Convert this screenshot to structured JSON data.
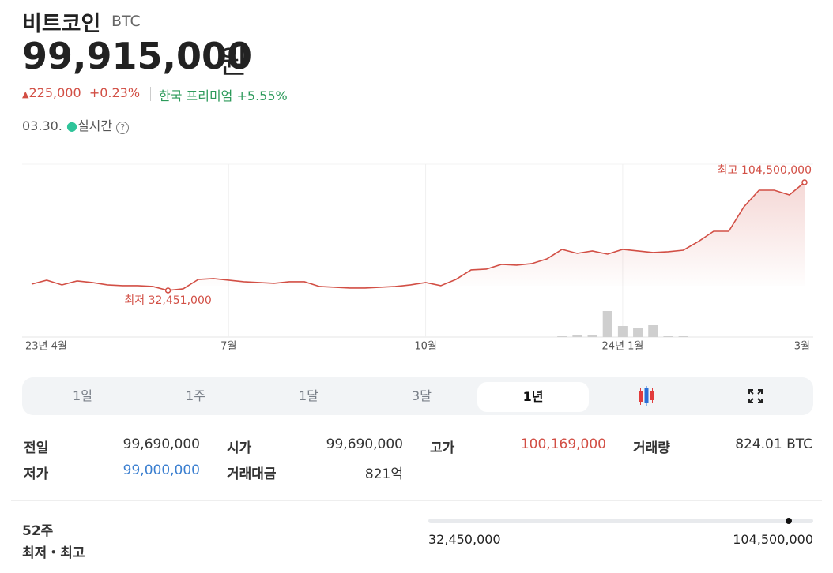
{
  "header": {
    "title": "비트코인",
    "ticker": "BTC",
    "price": {
      "value": 99915000,
      "label": "99,915,000"
    },
    "unit": "원",
    "change": "225,000",
    "change_pct": "+0.23%",
    "premium_label": "한국 프리미엄",
    "premium": "+5.55%",
    "date": "03.30.",
    "live": "실시간"
  },
  "chart_data": {
    "type": "line",
    "color": "#d24f45",
    "grid": true,
    "categories": [
      "23년 4월",
      null,
      null,
      null,
      null,
      null,
      null,
      null,
      null,
      null,
      null,
      null,
      null,
      "7월",
      null,
      null,
      null,
      null,
      null,
      null,
      null,
      null,
      null,
      null,
      null,
      null,
      "10월",
      null,
      null,
      null,
      null,
      null,
      null,
      null,
      null,
      null,
      null,
      null,
      null,
      "24년 1월",
      null,
      null,
      null,
      null,
      null,
      null,
      null,
      null,
      null,
      null,
      null,
      "3월"
    ],
    "values": [
      36660000,
      39290000,
      36130000,
      38760000,
      37710000,
      36130000,
      35610000,
      35610000,
      35080000,
      32451000,
      33500000,
      39810000,
      40340000,
      39290000,
      38240000,
      37710000,
      37180000,
      38240000,
      38240000,
      35080000,
      34550000,
      34030000,
      34030000,
      34550000,
      35080000,
      36130000,
      37710000,
      35610000,
      39810000,
      46130000,
      46650000,
      49810000,
      49280000,
      50330000,
      53490000,
      59800000,
      57170000,
      58750000,
      56640000,
      59800000,
      58750000,
      57700000,
      58220000,
      59270000,
      65060000,
      71890000,
      71890000,
      88200000,
      99240000,
      99240000,
      96090000,
      104500000
    ],
    "ylim": [
      1400000,
      116600000
    ],
    "volume": [
      null,
      null,
      null,
      null,
      null,
      null,
      null,
      null,
      null,
      null,
      null,
      null,
      null,
      null,
      null,
      null,
      null,
      null,
      null,
      null,
      null,
      null,
      null,
      null,
      null,
      null,
      null,
      null,
      null,
      null,
      null,
      null,
      null,
      null,
      null,
      1,
      2,
      3,
      33,
      14,
      12,
      15,
      1,
      1,
      null,
      null,
      null,
      null,
      null,
      null,
      null,
      null
    ],
    "volume_color": "#cfcfcf",
    "y2lim": [
      0,
      100
    ],
    "annotations": {
      "min": "최저 32,451,000",
      "max": "최고 104,500,000"
    }
  },
  "tabs": [
    "1일",
    "1주",
    "1달",
    "3달",
    "1년"
  ],
  "selected_tab": 4,
  "stats": [
    [
      "전일",
      "99,690,000"
    ],
    [
      "시가",
      "99,690,000"
    ],
    [
      "고가",
      "100,169,000"
    ],
    [
      "거래량",
      "824.01 BTC"
    ],
    [
      "저가",
      "99,000,000"
    ],
    [
      "거래대금",
      "821억"
    ]
  ],
  "range": {
    "title": "52주",
    "subtitle": "최저・최고",
    "low": {
      "value": 32450000,
      "label": "32,450,000"
    },
    "high": {
      "value": 104500000,
      "label": "104,500,000"
    }
  }
}
